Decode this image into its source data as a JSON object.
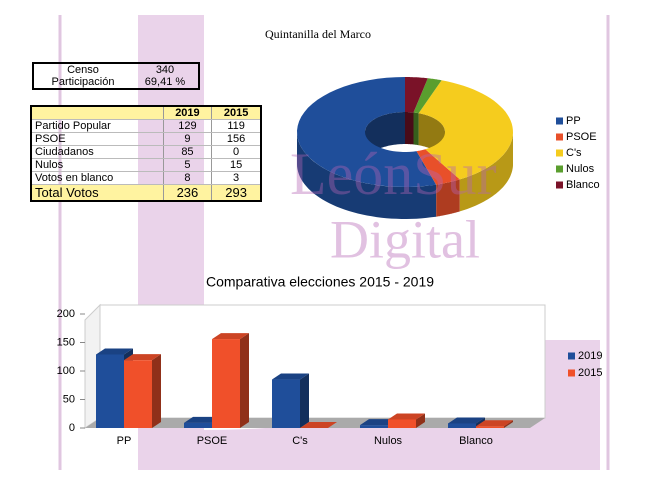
{
  "title": "Quintanilla del Marco",
  "census": {
    "rows": [
      [
        "Censo",
        340
      ],
      [
        "Participación",
        "69,41 %"
      ]
    ]
  },
  "results": {
    "header": [
      "2019",
      "2015"
    ],
    "rows": [
      [
        "Partido Popular",
        129,
        119
      ],
      [
        "PSOE",
        9,
        156
      ],
      [
        "Ciudadanos",
        85,
        0
      ],
      [
        "Nulos",
        5,
        15
      ],
      [
        "Votos en blanco",
        8,
        3
      ]
    ],
    "total": [
      "Total Votos",
      236,
      293
    ]
  },
  "watermark": [
    "LeónSur",
    "Digital"
  ],
  "chart_data": [
    {
      "type": "pie",
      "donut": true,
      "categories": [
        "PP",
        "PSOE",
        "C's",
        "Nulos",
        "Blanco"
      ],
      "values": [
        129,
        9,
        85,
        5,
        8
      ],
      "colors": [
        "#1f4e9a",
        "#e8502a",
        "#f5cc1e",
        "#5a9e2e",
        "#7a1228"
      ],
      "legend": "right"
    },
    {
      "type": "bar",
      "title": "Comparativa elecciones 2015 - 2019",
      "categories": [
        "PP",
        "PSOE",
        "C's",
        "Nulos",
        "Blanco"
      ],
      "series": [
        {
          "name": "2019",
          "color": "#1f4e9a",
          "values": [
            129,
            9,
            85,
            5,
            8
          ]
        },
        {
          "name": "2015",
          "color": "#f0502a",
          "values": [
            119,
            156,
            0,
            15,
            3
          ]
        }
      ],
      "ylim": [
        0,
        200
      ],
      "yticks": [
        0,
        50,
        100,
        150,
        200
      ],
      "legend": "right"
    }
  ]
}
